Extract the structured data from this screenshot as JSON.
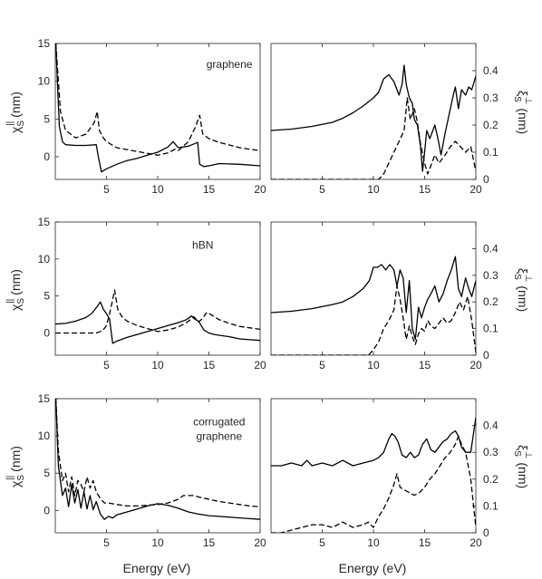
{
  "figure": {
    "shared_xlabel": "Energy (eV)",
    "left_ylabel": {
      "main": "χ",
      "sup": "||",
      "sub": "S",
      "unit": " (nm)"
    },
    "right_ylabel": {
      "main": "ξ",
      "sup": "⊥",
      "sub": "S",
      "unit": " (nm)"
    }
  },
  "chart_data": [
    {
      "id": "graphene-chi",
      "type": "line",
      "annotation": "graphene",
      "xlim": [
        0,
        20
      ],
      "ylim": [
        -3,
        15
      ],
      "xticks": [
        5,
        10,
        15,
        20
      ],
      "yticks": [
        0,
        5,
        10,
        15
      ],
      "ylabel_side": "left",
      "show_xlabel": false,
      "grid": false,
      "legend": "none",
      "series": [
        {
          "style": "solid",
          "x": [
            0.05,
            0.2,
            0.4,
            0.7,
            1.0,
            2.0,
            3.0,
            4.0,
            4.2,
            4.5,
            5,
            6,
            7,
            8,
            9,
            10,
            11,
            11.5,
            12,
            13,
            13.9,
            14.1,
            14.5,
            15,
            16,
            18,
            20
          ],
          "y": [
            15,
            10,
            4,
            2.0,
            1.6,
            1.5,
            1.5,
            1.6,
            0,
            -2.0,
            -1.6,
            -1.0,
            -0.5,
            -0.2,
            0.2,
            0.6,
            1.3,
            2.0,
            1.2,
            1.4,
            1.9,
            -1.0,
            -1.3,
            -1.2,
            -0.9,
            -1.0,
            -1.2
          ]
        },
        {
          "style": "dashed",
          "x": [
            0.05,
            0.2,
            0.5,
            1.0,
            2.0,
            3.0,
            3.8,
            4.1,
            4.3,
            4.7,
            5,
            6,
            8,
            10,
            11,
            11.7,
            12,
            13,
            13.7,
            14.1,
            14.4,
            15,
            16,
            18,
            20
          ],
          "y": [
            15,
            12,
            6,
            3.5,
            2.5,
            3.0,
            4.5,
            6.0,
            3.5,
            2.5,
            2.0,
            1.2,
            0.7,
            0.2,
            0.5,
            1.0,
            0.8,
            2.0,
            4.0,
            5.5,
            3.0,
            2.4,
            1.9,
            1.2,
            0.8
          ]
        }
      ]
    },
    {
      "id": "graphene-xi",
      "type": "line",
      "annotation": "",
      "xlim": [
        0,
        20
      ],
      "ylim": [
        0,
        0.5
      ],
      "xticks": [
        5,
        10,
        15,
        20
      ],
      "yticks": [
        0,
        0.1,
        0.2,
        0.3,
        0.4
      ],
      "ylabel_side": "right",
      "show_xlabel": false,
      "grid": false,
      "legend": "none",
      "series": [
        {
          "style": "solid",
          "x": [
            0,
            2,
            4,
            6,
            7,
            8,
            9,
            10,
            10.5,
            11,
            11.5,
            12,
            12.5,
            12.8,
            13,
            13.2,
            13.5,
            13.8,
            14,
            14.3,
            14.6,
            14.8,
            15,
            15.2,
            15.5,
            16,
            16.3,
            16.6,
            17,
            17.4,
            17.8,
            18,
            18.3,
            18.6,
            19,
            19.3,
            19.6,
            20
          ],
          "y": [
            0.18,
            0.185,
            0.195,
            0.21,
            0.225,
            0.245,
            0.27,
            0.3,
            0.32,
            0.37,
            0.385,
            0.36,
            0.31,
            0.35,
            0.42,
            0.35,
            0.3,
            0.28,
            0.22,
            0.2,
            0.12,
            0.03,
            0.1,
            0.18,
            0.15,
            0.2,
            0.15,
            0.09,
            0.17,
            0.24,
            0.31,
            0.34,
            0.26,
            0.33,
            0.31,
            0.34,
            0.33,
            0.38
          ]
        },
        {
          "style": "dashed",
          "x": [
            0,
            10.5,
            11,
            11.5,
            12,
            12.5,
            13,
            13.3,
            13.6,
            14,
            14.3,
            14.6,
            15,
            15.3,
            15.6,
            16,
            16.4,
            17,
            17.5,
            18,
            18.5,
            19,
            19.5,
            20
          ],
          "y": [
            0,
            0,
            0.02,
            0.06,
            0.1,
            0.14,
            0.18,
            0.3,
            0.22,
            0.26,
            0.21,
            0.13,
            0.06,
            0.02,
            0.05,
            0.09,
            0.06,
            0.09,
            0.12,
            0.14,
            0.12,
            0.1,
            0.12,
            0.03
          ]
        }
      ]
    },
    {
      "id": "hbn-chi",
      "type": "line",
      "annotation": "hBN",
      "xlim": [
        0,
        20
      ],
      "ylim": [
        -3,
        15
      ],
      "xticks": [
        5,
        10,
        15,
        20
      ],
      "yticks": [
        0,
        5,
        10,
        15
      ],
      "ylabel_side": "left",
      "show_xlabel": false,
      "grid": false,
      "legend": "none",
      "series": [
        {
          "style": "solid",
          "x": [
            0,
            1,
            2,
            3,
            3.6,
            4.1,
            4.4,
            4.7,
            5.0,
            5.3,
            5.6,
            6,
            7,
            8,
            9,
            10,
            11,
            12,
            12.8,
            13.3,
            13.6,
            14.0,
            14.5,
            15,
            15.5,
            16,
            17,
            18,
            19,
            20
          ],
          "y": [
            1.2,
            1.3,
            1.6,
            2.1,
            2.7,
            3.6,
            4.2,
            3.2,
            2.6,
            1.9,
            -1.4,
            -1.1,
            -0.6,
            -0.2,
            0.2,
            0.6,
            1.0,
            1.4,
            1.8,
            2.3,
            1.9,
            1.6,
            0.4,
            0.0,
            -0.2,
            -0.3,
            -0.5,
            -0.8,
            -0.9,
            -1.0
          ]
        },
        {
          "style": "dashed",
          "x": [
            0,
            2,
            3,
            4,
            4.6,
            5.0,
            5.3,
            5.6,
            5.8,
            6.1,
            6.5,
            7,
            8,
            9,
            10,
            11,
            12,
            12.8,
            13.2,
            13.5,
            14,
            14.4,
            14.8,
            15.3,
            16,
            17,
            18,
            19,
            20
          ],
          "y": [
            0,
            0,
            0,
            0,
            0.3,
            1.0,
            2.6,
            4.5,
            5.8,
            3.2,
            2.2,
            1.6,
            1.0,
            0.6,
            0.2,
            0.4,
            0.8,
            1.4,
            1.8,
            2.2,
            1.5,
            2.0,
            2.8,
            2.4,
            1.8,
            1.3,
            0.9,
            0.7,
            0.5
          ]
        }
      ]
    },
    {
      "id": "hbn-xi",
      "type": "line",
      "annotation": "",
      "xlim": [
        0,
        20
      ],
      "ylim": [
        0,
        0.5
      ],
      "xticks": [
        5,
        10,
        15,
        20
      ],
      "yticks": [
        0,
        0.1,
        0.2,
        0.3,
        0.4
      ],
      "ylabel_side": "right",
      "show_xlabel": false,
      "grid": false,
      "legend": "none",
      "series": [
        {
          "style": "solid",
          "x": [
            0,
            2,
            4,
            6,
            7,
            8,
            9,
            9.6,
            10.0,
            10.4,
            10.8,
            11.2,
            11.6,
            12,
            12.3,
            12.6,
            12.9,
            13.2,
            13.5,
            13.8,
            14.1,
            14.4,
            14.7,
            15,
            15.3,
            15.6,
            16,
            16.4,
            16.8,
            17.2,
            17.6,
            18,
            18.3,
            18.6,
            19,
            19.3,
            19.6,
            20
          ],
          "y": [
            0.16,
            0.165,
            0.175,
            0.19,
            0.2,
            0.22,
            0.25,
            0.28,
            0.33,
            0.33,
            0.34,
            0.32,
            0.34,
            0.32,
            0.26,
            0.32,
            0.29,
            0.16,
            0.28,
            0.1,
            0.06,
            0.18,
            0.14,
            0.18,
            0.21,
            0.23,
            0.26,
            0.2,
            0.23,
            0.28,
            0.32,
            0.37,
            0.25,
            0.22,
            0.29,
            0.25,
            0.22,
            0.28
          ]
        },
        {
          "style": "dashed",
          "x": [
            0,
            9.5,
            10,
            10.5,
            11,
            11.5,
            12,
            12.3,
            12.6,
            12.9,
            13.2,
            13.5,
            13.8,
            14.1,
            14.4,
            14.7,
            15,
            15.3,
            15.6,
            16,
            16.4,
            16.8,
            17.2,
            17.6,
            18,
            18.4,
            18.8,
            19.2,
            19.6,
            20
          ],
          "y": [
            0,
            0,
            0.02,
            0.05,
            0.1,
            0.13,
            0.17,
            0.26,
            0.21,
            0.14,
            0.06,
            0.11,
            0.07,
            0.04,
            0.08,
            0.1,
            0.09,
            0.13,
            0.11,
            0.1,
            0.12,
            0.14,
            0.12,
            0.13,
            0.16,
            0.2,
            0.17,
            0.22,
            0.13,
            0.01
          ]
        }
      ]
    },
    {
      "id": "corrugated-chi",
      "type": "line",
      "annotation": "corrugated graphene",
      "xlim": [
        0,
        20
      ],
      "ylim": [
        -3,
        15
      ],
      "xticks": [
        5,
        10,
        15,
        20
      ],
      "yticks": [
        0,
        5,
        10,
        15
      ],
      "ylabel_side": "left",
      "show_xlabel": true,
      "grid": false,
      "legend": "none",
      "series": [
        {
          "style": "solid",
          "x": [
            0.05,
            0.3,
            0.7,
            1.0,
            1.3,
            1.6,
            1.9,
            2.2,
            2.5,
            2.8,
            3.1,
            3.4,
            3.7,
            4.0,
            4.4,
            4.8,
            5.2,
            5.6,
            6,
            7,
            8,
            9,
            10,
            11,
            12,
            13,
            14,
            15,
            16,
            17,
            18,
            19,
            20
          ],
          "y": [
            15,
            6,
            2,
            3,
            0.5,
            3.5,
            1.0,
            2.8,
            0.3,
            2.5,
            0.2,
            2.0,
            0.1,
            1.2,
            -0.5,
            -1.2,
            -0.8,
            -1.0,
            -0.6,
            -0.2,
            0.2,
            0.6,
            0.9,
            0.7,
            0.3,
            -0.2,
            -0.5,
            -0.7,
            -0.8,
            -0.9,
            -1.0,
            -1.1,
            -1.2
          ]
        },
        {
          "style": "dashed",
          "x": [
            0.05,
            0.3,
            0.7,
            1.0,
            1.3,
            1.6,
            1.9,
            2.2,
            2.5,
            2.8,
            3.1,
            3.4,
            3.7,
            4.0,
            4.4,
            4.8,
            5.2,
            6,
            7,
            8,
            9,
            10,
            11,
            12,
            12.5,
            13,
            13.5,
            14,
            15,
            16,
            17,
            18,
            19,
            20
          ],
          "y": [
            15,
            8,
            4,
            5,
            2.5,
            4.5,
            2.0,
            4.0,
            3.5,
            2.5,
            4.5,
            3.0,
            4.0,
            2.5,
            1.6,
            1.0,
            1.0,
            0.8,
            0.6,
            0.6,
            0.7,
            0.8,
            1.0,
            1.5,
            2.0,
            2.0,
            2.0,
            1.8,
            1.5,
            1.2,
            1.0,
            0.8,
            0.6,
            0.5
          ]
        }
      ]
    },
    {
      "id": "corrugated-xi",
      "type": "line",
      "annotation": "",
      "xlim": [
        0,
        20
      ],
      "ylim": [
        0,
        0.5
      ],
      "xticks": [
        5,
        10,
        15,
        20
      ],
      "yticks": [
        0,
        0.1,
        0.2,
        0.3,
        0.4
      ],
      "ylabel_side": "right",
      "show_xlabel": true,
      "grid": false,
      "legend": "none",
      "series": [
        {
          "style": "solid",
          "x": [
            0,
            1,
            2,
            3,
            3.5,
            4,
            5,
            6,
            7,
            8,
            9,
            10,
            10.5,
            11,
            11.5,
            11.8,
            12.1,
            12.4,
            12.8,
            13.2,
            13.6,
            14,
            14.4,
            14.8,
            15.2,
            15.6,
            16,
            16.4,
            16.8,
            17.2,
            17.6,
            18,
            18.3,
            18.6,
            19,
            19.5,
            20
          ],
          "y": [
            0.25,
            0.25,
            0.26,
            0.25,
            0.27,
            0.25,
            0.26,
            0.25,
            0.27,
            0.25,
            0.26,
            0.27,
            0.28,
            0.3,
            0.35,
            0.37,
            0.36,
            0.34,
            0.29,
            0.28,
            0.3,
            0.28,
            0.29,
            0.33,
            0.35,
            0.31,
            0.3,
            0.32,
            0.34,
            0.35,
            0.37,
            0.38,
            0.36,
            0.32,
            0.3,
            0.3,
            0.43
          ]
        },
        {
          "style": "dashed",
          "x": [
            0,
            1,
            2,
            3,
            4,
            5,
            6,
            7,
            8,
            9,
            9.5,
            10,
            10.5,
            11,
            11.5,
            12,
            12.3,
            12.6,
            13,
            13.5,
            14,
            14.5,
            15,
            15.5,
            16,
            16.5,
            17,
            17.5,
            18,
            18.3,
            18.6,
            19,
            19.5,
            20
          ],
          "y": [
            0,
            0,
            0.01,
            0.02,
            0.03,
            0.03,
            0.02,
            0.04,
            0.02,
            0.03,
            0.04,
            0.02,
            0.06,
            0.09,
            0.13,
            0.18,
            0.22,
            0.17,
            0.16,
            0.15,
            0.14,
            0.15,
            0.17,
            0.2,
            0.22,
            0.25,
            0.28,
            0.3,
            0.33,
            0.36,
            0.33,
            0.3,
            0.2,
            0.02
          ]
        }
      ]
    }
  ]
}
